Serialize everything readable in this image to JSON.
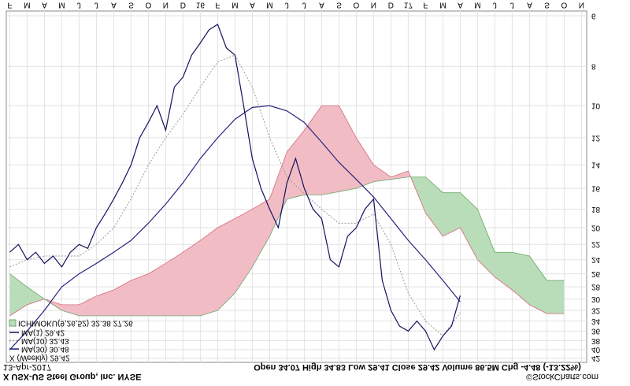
{
  "chart_data": {
    "type": "line",
    "title": "X USX-US Steel Group, Inc. NYSE",
    "date": "13-Apr-2017",
    "quote": "Open 34.07 High 34.83 Low 29.41 Close 29.42 Volume 86.5M Chg -4.48 (-13.22%)",
    "source": "©StockCharts.com",
    "price_label": "X (Weekly) 29.42",
    "log_scale": true,
    "grid": true,
    "xlim": [
      1.8,
      35.3
    ],
    "ylim": [
      5.84,
      43
    ],
    "xticks": [
      {
        "value": 2,
        "label": "F"
      },
      {
        "value": 3,
        "label": "M"
      },
      {
        "value": 4,
        "label": "A"
      },
      {
        "value": 5,
        "label": "M"
      },
      {
        "value": 6,
        "label": "J"
      },
      {
        "value": 7,
        "label": "J"
      },
      {
        "value": 8,
        "label": "A"
      },
      {
        "value": 9,
        "label": "S"
      },
      {
        "value": 10,
        "label": "O"
      },
      {
        "value": 11,
        "label": "N"
      },
      {
        "value": 12,
        "label": "D"
      },
      {
        "value": 13,
        "label": "16"
      },
      {
        "value": 14,
        "label": "F"
      },
      {
        "value": 15,
        "label": "M"
      },
      {
        "value": 16,
        "label": "A"
      },
      {
        "value": 17,
        "label": "M"
      },
      {
        "value": 18,
        "label": "J"
      },
      {
        "value": 19,
        "label": "J"
      },
      {
        "value": 20,
        "label": "A"
      },
      {
        "value": 21,
        "label": "S"
      },
      {
        "value": 22,
        "label": "O"
      },
      {
        "value": 23,
        "label": "N"
      },
      {
        "value": 24,
        "label": "D"
      },
      {
        "value": 25,
        "label": "17"
      },
      {
        "value": 26,
        "label": "F"
      },
      {
        "value": 27,
        "label": "M"
      },
      {
        "value": 28,
        "label": "A"
      },
      {
        "value": 29,
        "label": "M"
      },
      {
        "value": 30,
        "label": "J"
      },
      {
        "value": 31,
        "label": "J"
      },
      {
        "value": 32,
        "label": "A"
      },
      {
        "value": 33,
        "label": "S"
      },
      {
        "value": 34,
        "label": "O"
      },
      {
        "value": 35,
        "label": "N"
      }
    ],
    "yticks": [
      6,
      8,
      10,
      12,
      14,
      16,
      18,
      20,
      22,
      24,
      26,
      28,
      30,
      32,
      34,
      36,
      38,
      40,
      42
    ],
    "series": [
      {
        "name": "MA(30) 30.48",
        "color": "#23237e",
        "dashed": false,
        "x": [
          2,
          3,
          4,
          5,
          6,
          7,
          8,
          9,
          10,
          11,
          12,
          13,
          14,
          15,
          16,
          17,
          18,
          19,
          20,
          21,
          22,
          23,
          24,
          25,
          26,
          27,
          28
        ],
        "values": [
          40,
          36,
          32,
          28,
          26,
          24.5,
          23,
          21.5,
          19.5,
          17.5,
          15.5,
          13.5,
          12,
          10.8,
          10.1,
          10,
          10.3,
          11,
          12.3,
          13.8,
          15.2,
          16.8,
          19,
          21.5,
          24,
          27,
          30.48
        ]
      },
      {
        "name": "MA(10) 32.43",
        "color": "#999999",
        "dashed": true,
        "x": [
          2,
          3,
          4,
          5,
          6,
          7,
          8,
          9,
          10,
          11,
          12,
          13,
          14,
          15,
          16,
          17,
          18,
          19,
          20,
          21,
          22,
          23,
          24,
          25,
          26,
          27,
          28
        ],
        "values": [
          25,
          24,
          23.5,
          23.5,
          23.5,
          22,
          20,
          17,
          14,
          12,
          10.5,
          9,
          7.8,
          7.5,
          9,
          12,
          15,
          16.5,
          18,
          19.5,
          19.5,
          18.5,
          22,
          29,
          34,
          37,
          32.43
        ]
      },
      {
        "name": "MA(1) 29.42",
        "color": "#12125e",
        "dashed": false,
        "x": [
          2,
          2.5,
          3,
          3.5,
          4,
          4.5,
          5,
          5.5,
          6,
          6.5,
          7,
          7.5,
          8,
          8.5,
          9,
          9.5,
          10,
          10.5,
          11,
          11.5,
          12,
          12.5,
          13,
          13.5,
          14,
          14.5,
          15,
          15.5,
          16,
          16.5,
          17,
          17.5,
          18,
          18.5,
          19,
          19.5,
          20,
          20.5,
          21,
          21.5,
          22,
          22.5,
          23,
          23.5,
          24,
          24.5,
          25,
          25.5,
          26,
          26.5,
          27,
          27.5,
          28
        ],
        "values": [
          23,
          22,
          24,
          23,
          24.5,
          23.5,
          25,
          23,
          22,
          22.5,
          20,
          18.5,
          17,
          15.5,
          14,
          12,
          11,
          10,
          11.5,
          9,
          8.5,
          7.5,
          7,
          6.5,
          6.3,
          7.2,
          7.5,
          10,
          13.5,
          16,
          18,
          20,
          15.5,
          13.5,
          16,
          18,
          19,
          24,
          25,
          21,
          20,
          18,
          17,
          27,
          32,
          35,
          36,
          34,
          36,
          40,
          37,
          35,
          29.42
        ]
      }
    ],
    "cloud": {
      "name": "ICHIMOKU(9,26,52) 32.38 27.26",
      "up_color": "#b9dcb9",
      "down_color": "#f2bcc5",
      "a_color": "#d46a7a",
      "b_color": "#6aa86a",
      "x": [
        2,
        3,
        4,
        5,
        6,
        7,
        8,
        9,
        10,
        11,
        12,
        13,
        14,
        15,
        16,
        17,
        18,
        19,
        20,
        21,
        22,
        23,
        24,
        25,
        26,
        27,
        28,
        29,
        30,
        31,
        32,
        33,
        34
      ],
      "span_a": [
        33,
        31,
        30,
        31,
        31,
        29.5,
        28.5,
        27,
        26,
        24.5,
        23,
        21.5,
        20,
        19,
        18,
        17,
        13,
        11.5,
        10,
        10,
        12,
        14,
        15,
        14.5,
        18.4,
        21,
        20,
        24,
        26.5,
        28.5,
        31,
        32.6,
        32.6
      ],
      "span_b": [
        26,
        28,
        30,
        32,
        33,
        33,
        33,
        33,
        33,
        33,
        33,
        33,
        32,
        29,
        25,
        21,
        17,
        16.6,
        16.6,
        16.3,
        16,
        15.4,
        15.2,
        15,
        15,
        16.4,
        16.4,
        18,
        23,
        23,
        23.5,
        27,
        27
      ]
    }
  }
}
